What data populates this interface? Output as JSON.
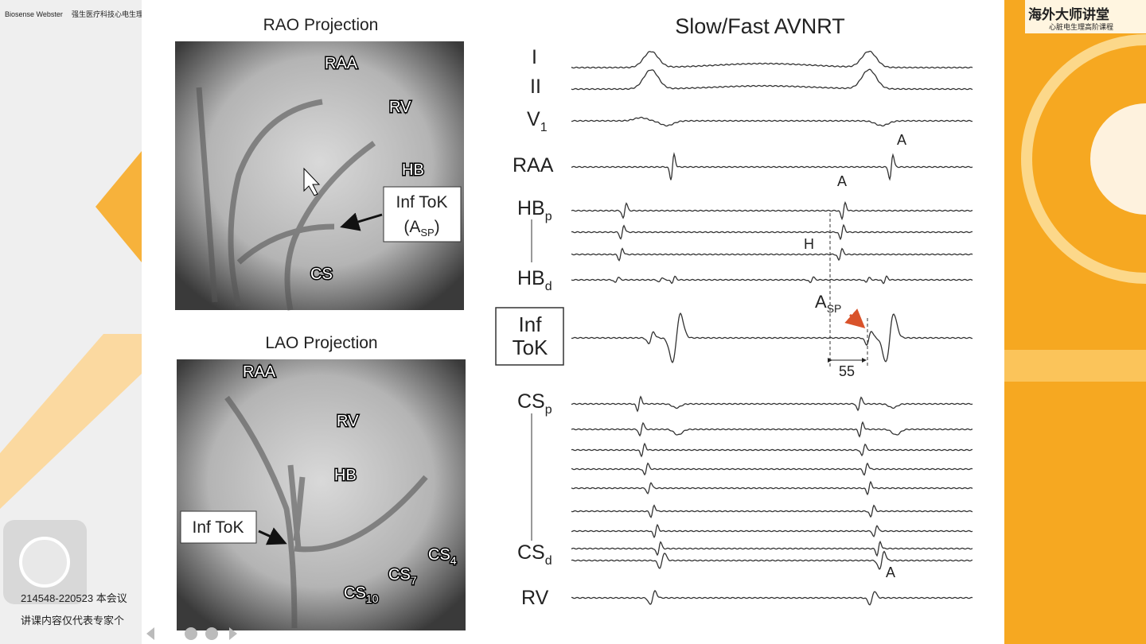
{
  "overlay": {
    "logos": [
      "Biosense Webster",
      "强生医疗科技心电生理"
    ],
    "banner": [
      "海外大师讲堂",
      "心脏电生理高阶课程"
    ],
    "notice": [
      "214548-220523 本会议",
      "讲课内容仅代表专家个"
    ]
  },
  "slide": {
    "rao": {
      "title": "RAO Projection",
      "labels": [
        "RAA",
        "RV",
        "HB",
        "CS"
      ],
      "callout": {
        "line1": "Inf ToK",
        "open": "(A",
        "sub": "SP",
        "close": ")"
      }
    },
    "lao": {
      "title": "LAO Projection",
      "labels": [
        "RAA",
        "RV",
        "HB"
      ],
      "callout": "Inf ToK",
      "cs": [
        {
          "text": "CS",
          "sub": "4"
        },
        {
          "text": "CS",
          "sub": "7"
        },
        {
          "text": "CS",
          "sub": "10"
        }
      ]
    },
    "tracing": {
      "title": "Slow/Fast AVNRT",
      "leads": [
        {
          "text": "I"
        },
        {
          "text": "II"
        },
        {
          "text": "V",
          "sub": "1"
        },
        {
          "text": "RAA"
        },
        {
          "text": "HB",
          "sub": "p"
        },
        {
          "text": "HB",
          "sub": "d"
        },
        {
          "text": "CS",
          "sub": "p"
        },
        {
          "text": "CS",
          "sub": "d"
        },
        {
          "text": "RV"
        }
      ],
      "inf_tok": [
        "Inf",
        "ToK"
      ],
      "annotations": {
        "a_raa": "A",
        "a_hb": "A",
        "h": "H",
        "asp": "A",
        "asp_sub": "SP",
        "interval": "55",
        "a_cs": "A"
      }
    }
  }
}
